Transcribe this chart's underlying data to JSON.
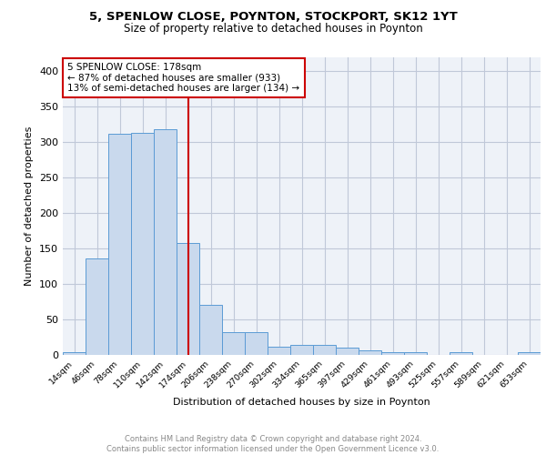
{
  "title1": "5, SPENLOW CLOSE, POYNTON, STOCKPORT, SK12 1YT",
  "title2": "Size of property relative to detached houses in Poynton",
  "xlabel": "Distribution of detached houses by size in Poynton",
  "ylabel": "Number of detached properties",
  "bin_labels": [
    "14sqm",
    "46sqm",
    "78sqm",
    "110sqm",
    "142sqm",
    "174sqm",
    "206sqm",
    "238sqm",
    "270sqm",
    "302sqm",
    "334sqm",
    "365sqm",
    "397sqm",
    "429sqm",
    "461sqm",
    "493sqm",
    "525sqm",
    "557sqm",
    "589sqm",
    "621sqm",
    "653sqm"
  ],
  "bar_heights": [
    4,
    136,
    312,
    313,
    318,
    158,
    70,
    32,
    32,
    12,
    14,
    14,
    10,
    7,
    4,
    4,
    0,
    4,
    0,
    0,
    4
  ],
  "bar_color": "#c9d9ed",
  "bar_edge_color": "#5b9bd5",
  "vline_x": 5.0,
  "vline_color": "#cc0000",
  "annotation_text": "5 SPENLOW CLOSE: 178sqm\n← 87% of detached houses are smaller (933)\n13% of semi-detached houses are larger (134) →",
  "annotation_box_color": "#ffffff",
  "annotation_box_edge": "#cc0000",
  "ylim": [
    0,
    420
  ],
  "yticks": [
    0,
    50,
    100,
    150,
    200,
    250,
    300,
    350,
    400
  ],
  "footer_text": "Contains HM Land Registry data © Crown copyright and database right 2024.\nContains public sector information licensed under the Open Government Licence v3.0.",
  "grid_color": "#c0c8d8",
  "background_color": "#eef2f8"
}
